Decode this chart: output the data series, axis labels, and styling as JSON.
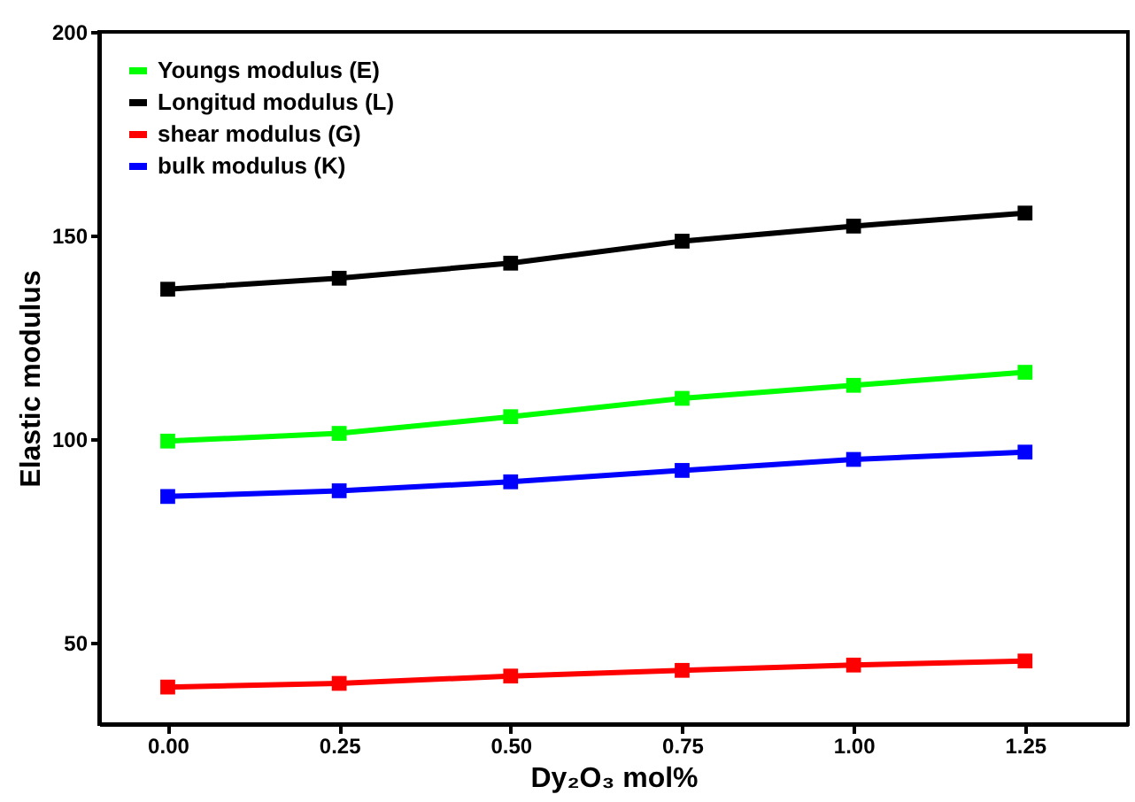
{
  "chart_data": {
    "type": "line",
    "xlabel": "Dy₂O₃ mol%",
    "ylabel": "Elastic modulus",
    "x": [
      0,
      0.25,
      0.5,
      0.75,
      1.0,
      1.25
    ],
    "series": [
      {
        "name": "Youngs modulus (E)",
        "color": "#00ff00",
        "values": [
          99.5,
          101.4,
          105.5,
          110,
          113.2,
          116.4
        ]
      },
      {
        "name": "Longitud modulus (L)",
        "color": "#000000",
        "values": [
          136.8,
          139.5,
          143.2,
          148.6,
          152.3,
          155.5
        ]
      },
      {
        "name": "shear modulus (G)",
        "color": "#ff0000",
        "values": [
          39.1,
          40,
          41.8,
          43.2,
          44.5,
          45.5
        ]
      },
      {
        "name": "bulk modulus (K)",
        "color": "#0000ff",
        "values": [
          85.9,
          87.3,
          89.5,
          92.3,
          95,
          96.8
        ]
      }
    ],
    "xlim": [
      -0.1,
      1.4
    ],
    "xticks": [
      {
        "value": 0,
        "label": "0.00"
      },
      {
        "value": 0.25,
        "label": "0.25"
      },
      {
        "value": 0.5,
        "label": "0.50"
      },
      {
        "value": 0.75,
        "label": "0.75"
      },
      {
        "value": 1.0,
        "label": "1.00"
      },
      {
        "value": 1.25,
        "label": "1.25"
      }
    ],
    "ylim": [
      30,
      200
    ],
    "yticks": [
      50,
      100,
      150,
      200
    ],
    "grid": false,
    "legend": "top left",
    "marker": "square",
    "line_style": "solid"
  }
}
